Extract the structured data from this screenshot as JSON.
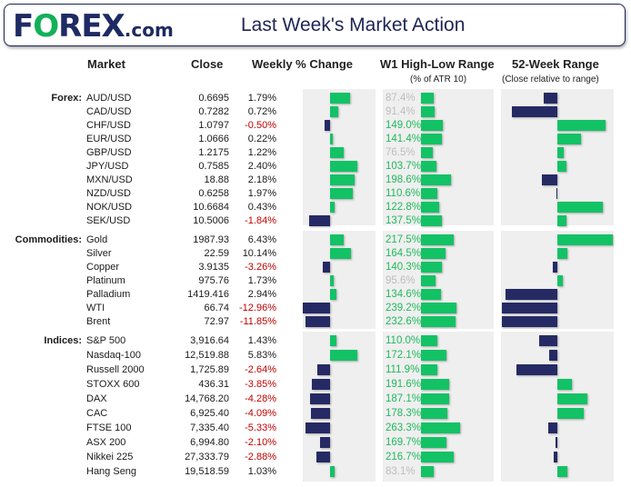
{
  "header": {
    "logo": "FOREX.com",
    "logo_parts": [
      "F",
      "O",
      "REX",
      ".com"
    ],
    "title": "Last Week's Market Action"
  },
  "columns": {
    "market": "Market",
    "close": "Close",
    "weekly": "Weekly % Change",
    "w1": "W1 High-Low Range",
    "w1_sub": "(% of ATR 10)",
    "range52": "52-Week Range",
    "range52_sub": "(Close relative to range)"
  },
  "colors": {
    "positive": "#13c265",
    "negative": "#262a64",
    "negative_text": "#c00000",
    "above_atr_text": "#1fba5c",
    "below_atr_text": "#bdbdbd",
    "panel": "#efefef"
  },
  "chart_data": {
    "type": "table",
    "note_52w_scale": "52-week value: -1 = at 52-week low side, 0 = mid-range, 1 = at 52-week high side",
    "sections": [
      {
        "label": "Forex:",
        "rows": [
          {
            "market": "AUD/USD",
            "close": "0.6695",
            "weekly": "1.79%",
            "weekly_value": 1.79,
            "w1": "87.4%",
            "w1_value": 87.4,
            "range52": -0.25
          },
          {
            "market": "CAD/USD",
            "close": "0.7282",
            "weekly": "0.72%",
            "weekly_value": 0.72,
            "w1": "91.4%",
            "w1_value": 91.4,
            "range52": -0.82
          },
          {
            "market": "CHF/USD",
            "close": "1.0797",
            "weekly": "-0.50%",
            "weekly_value": -0.5,
            "w1": "149.0%",
            "w1_value": 149.0,
            "range52": 0.87
          },
          {
            "market": "EUR/USD",
            "close": "1.0666",
            "weekly": "0.22%",
            "weekly_value": 0.22,
            "w1": "141.4%",
            "w1_value": 141.4,
            "range52": 0.43
          },
          {
            "market": "GBP/USD",
            "close": "1.2175",
            "weekly": "1.22%",
            "weekly_value": 1.22,
            "w1": "76.5%",
            "w1_value": 76.5,
            "range52": 0.12
          },
          {
            "market": "JPY/USD",
            "close": "0.7585",
            "weekly": "2.40%",
            "weekly_value": 2.4,
            "w1": "103.7%",
            "w1_value": 103.7,
            "range52": 0.16
          },
          {
            "market": "MXN/USD",
            "close": "18.88",
            "weekly": "2.18%",
            "weekly_value": 2.18,
            "w1": "198.6%",
            "w1_value": 198.6,
            "range52": -0.28
          },
          {
            "market": "NZD/USD",
            "close": "0.6258",
            "weekly": "1.97%",
            "weekly_value": 1.97,
            "w1": "110.6%",
            "w1_value": 110.6,
            "range52": -0.02
          },
          {
            "market": "NOK/USD",
            "close": "10.6684",
            "weekly": "0.43%",
            "weekly_value": 0.43,
            "w1": "122.8%",
            "w1_value": 122.8,
            "range52": 0.82
          },
          {
            "market": "SEK/USD",
            "close": "10.5006",
            "weekly": "-1.84%",
            "weekly_value": -1.84,
            "w1": "137.5%",
            "w1_value": 137.5,
            "range52": 0.16
          }
        ]
      },
      {
        "label": "Commodities:",
        "rows": [
          {
            "market": "Gold",
            "close": "1987.93",
            "weekly": "6.43%",
            "weekly_value": 6.43,
            "w1": "217.5%",
            "w1_value": 217.5,
            "range52": 1.0
          },
          {
            "market": "Silver",
            "close": "22.59",
            "weekly": "10.14%",
            "weekly_value": 10.14,
            "w1": "164.5%",
            "w1_value": 164.5,
            "range52": 0.18
          },
          {
            "market": "Copper",
            "close": "3.9135",
            "weekly": "-3.26%",
            "weekly_value": -3.26,
            "w1": "140.3%",
            "w1_value": 140.3,
            "range52": -0.09
          },
          {
            "market": "Platinum",
            "close": "975.76",
            "weekly": "1.73%",
            "weekly_value": 1.73,
            "w1": "95.6%",
            "w1_value": 95.6,
            "range52": 0.1
          },
          {
            "market": "Palladium",
            "close": "1419.416",
            "weekly": "2.94%",
            "weekly_value": 2.94,
            "w1": "134.6%",
            "w1_value": 134.6,
            "range52": -0.93
          },
          {
            "market": "WTI",
            "close": "66.74",
            "weekly": "-12.96%",
            "weekly_value": -12.96,
            "w1": "239.2%",
            "w1_value": 239.2,
            "range52": -1.0
          },
          {
            "market": "Brent",
            "close": "72.97",
            "weekly": "-11.85%",
            "weekly_value": -11.85,
            "w1": "232.6%",
            "w1_value": 232.6,
            "range52": -1.0
          }
        ]
      },
      {
        "label": "Indices:",
        "rows": [
          {
            "market": "S&P 500",
            "close": "3,916.64",
            "weekly": "1.43%",
            "weekly_value": 1.43,
            "w1": "110.0%",
            "w1_value": 110.0,
            "range52": -0.33
          },
          {
            "market": "Nasdaq-100",
            "close": "12,519.88",
            "weekly": "5.83%",
            "weekly_value": 5.83,
            "w1": "172.1%",
            "w1_value": 172.1,
            "range52": -0.14
          },
          {
            "market": "Russell 2000",
            "close": "1,725.89",
            "weekly": "-2.64%",
            "weekly_value": -2.64,
            "w1": "111.9%",
            "w1_value": 111.9,
            "range52": -0.74
          },
          {
            "market": "STOXX 600",
            "close": "436.31",
            "weekly": "-3.85%",
            "weekly_value": -3.85,
            "w1": "191.6%",
            "w1_value": 191.6,
            "range52": 0.27
          },
          {
            "market": "DAX",
            "close": "14,768.20",
            "weekly": "-4.28%",
            "weekly_value": -4.28,
            "w1": "187.1%",
            "w1_value": 187.1,
            "range52": 0.54
          },
          {
            "market": "CAC",
            "close": "6,925.40",
            "weekly": "-4.09%",
            "weekly_value": -4.09,
            "w1": "178.3%",
            "w1_value": 178.3,
            "range52": 0.47
          },
          {
            "market": "FTSE 100",
            "close": "7,335.40",
            "weekly": "-5.33%",
            "weekly_value": -5.33,
            "w1": "263.3%",
            "w1_value": 263.3,
            "range52": -0.17
          },
          {
            "market": "ASX 200",
            "close": "6,994.80",
            "weekly": "-2.10%",
            "weekly_value": -2.1,
            "w1": "169.7%",
            "w1_value": 169.7,
            "range52": -0.04
          },
          {
            "market": "Nikkei 225",
            "close": "27,333.79",
            "weekly": "-2.88%",
            "weekly_value": -2.88,
            "w1": "216.7%",
            "w1_value": 216.7,
            "range52": -0.07
          },
          {
            "market": "Hang Seng",
            "close": "19,518.59",
            "weekly": "1.03%",
            "weekly_value": 1.03,
            "w1": "83.1%",
            "w1_value": 83.1,
            "range52": 0.18
          }
        ]
      }
    ]
  }
}
